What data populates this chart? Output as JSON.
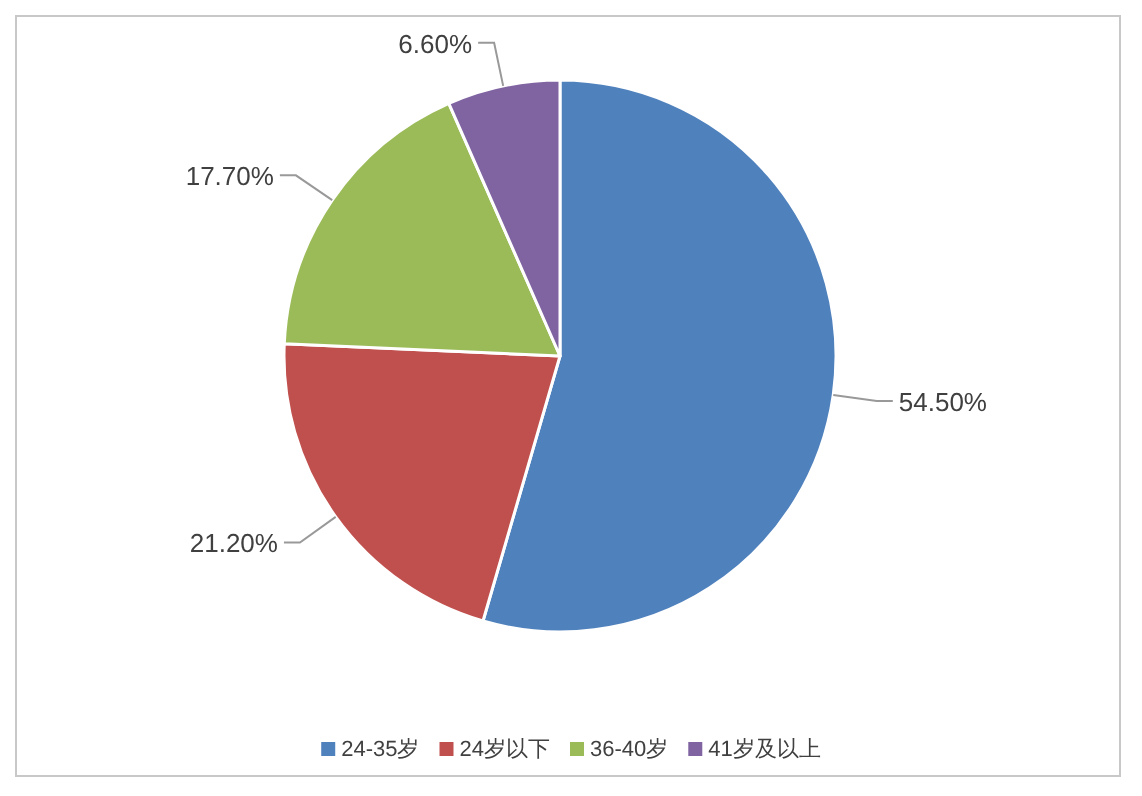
{
  "chart_data": {
    "type": "pie",
    "categories": [
      "24-35岁",
      "24岁以下",
      "36-40岁",
      "41岁及以上"
    ],
    "values": [
      54.5,
      21.2,
      17.7,
      6.6
    ],
    "colors": [
      "#4f81bd",
      "#c0504d",
      "#9bbb59",
      "#8064a2"
    ],
    "value_labels": [
      "54.50%",
      "21.20%",
      "17.70%",
      "6.60%"
    ],
    "legend": "bottom"
  }
}
